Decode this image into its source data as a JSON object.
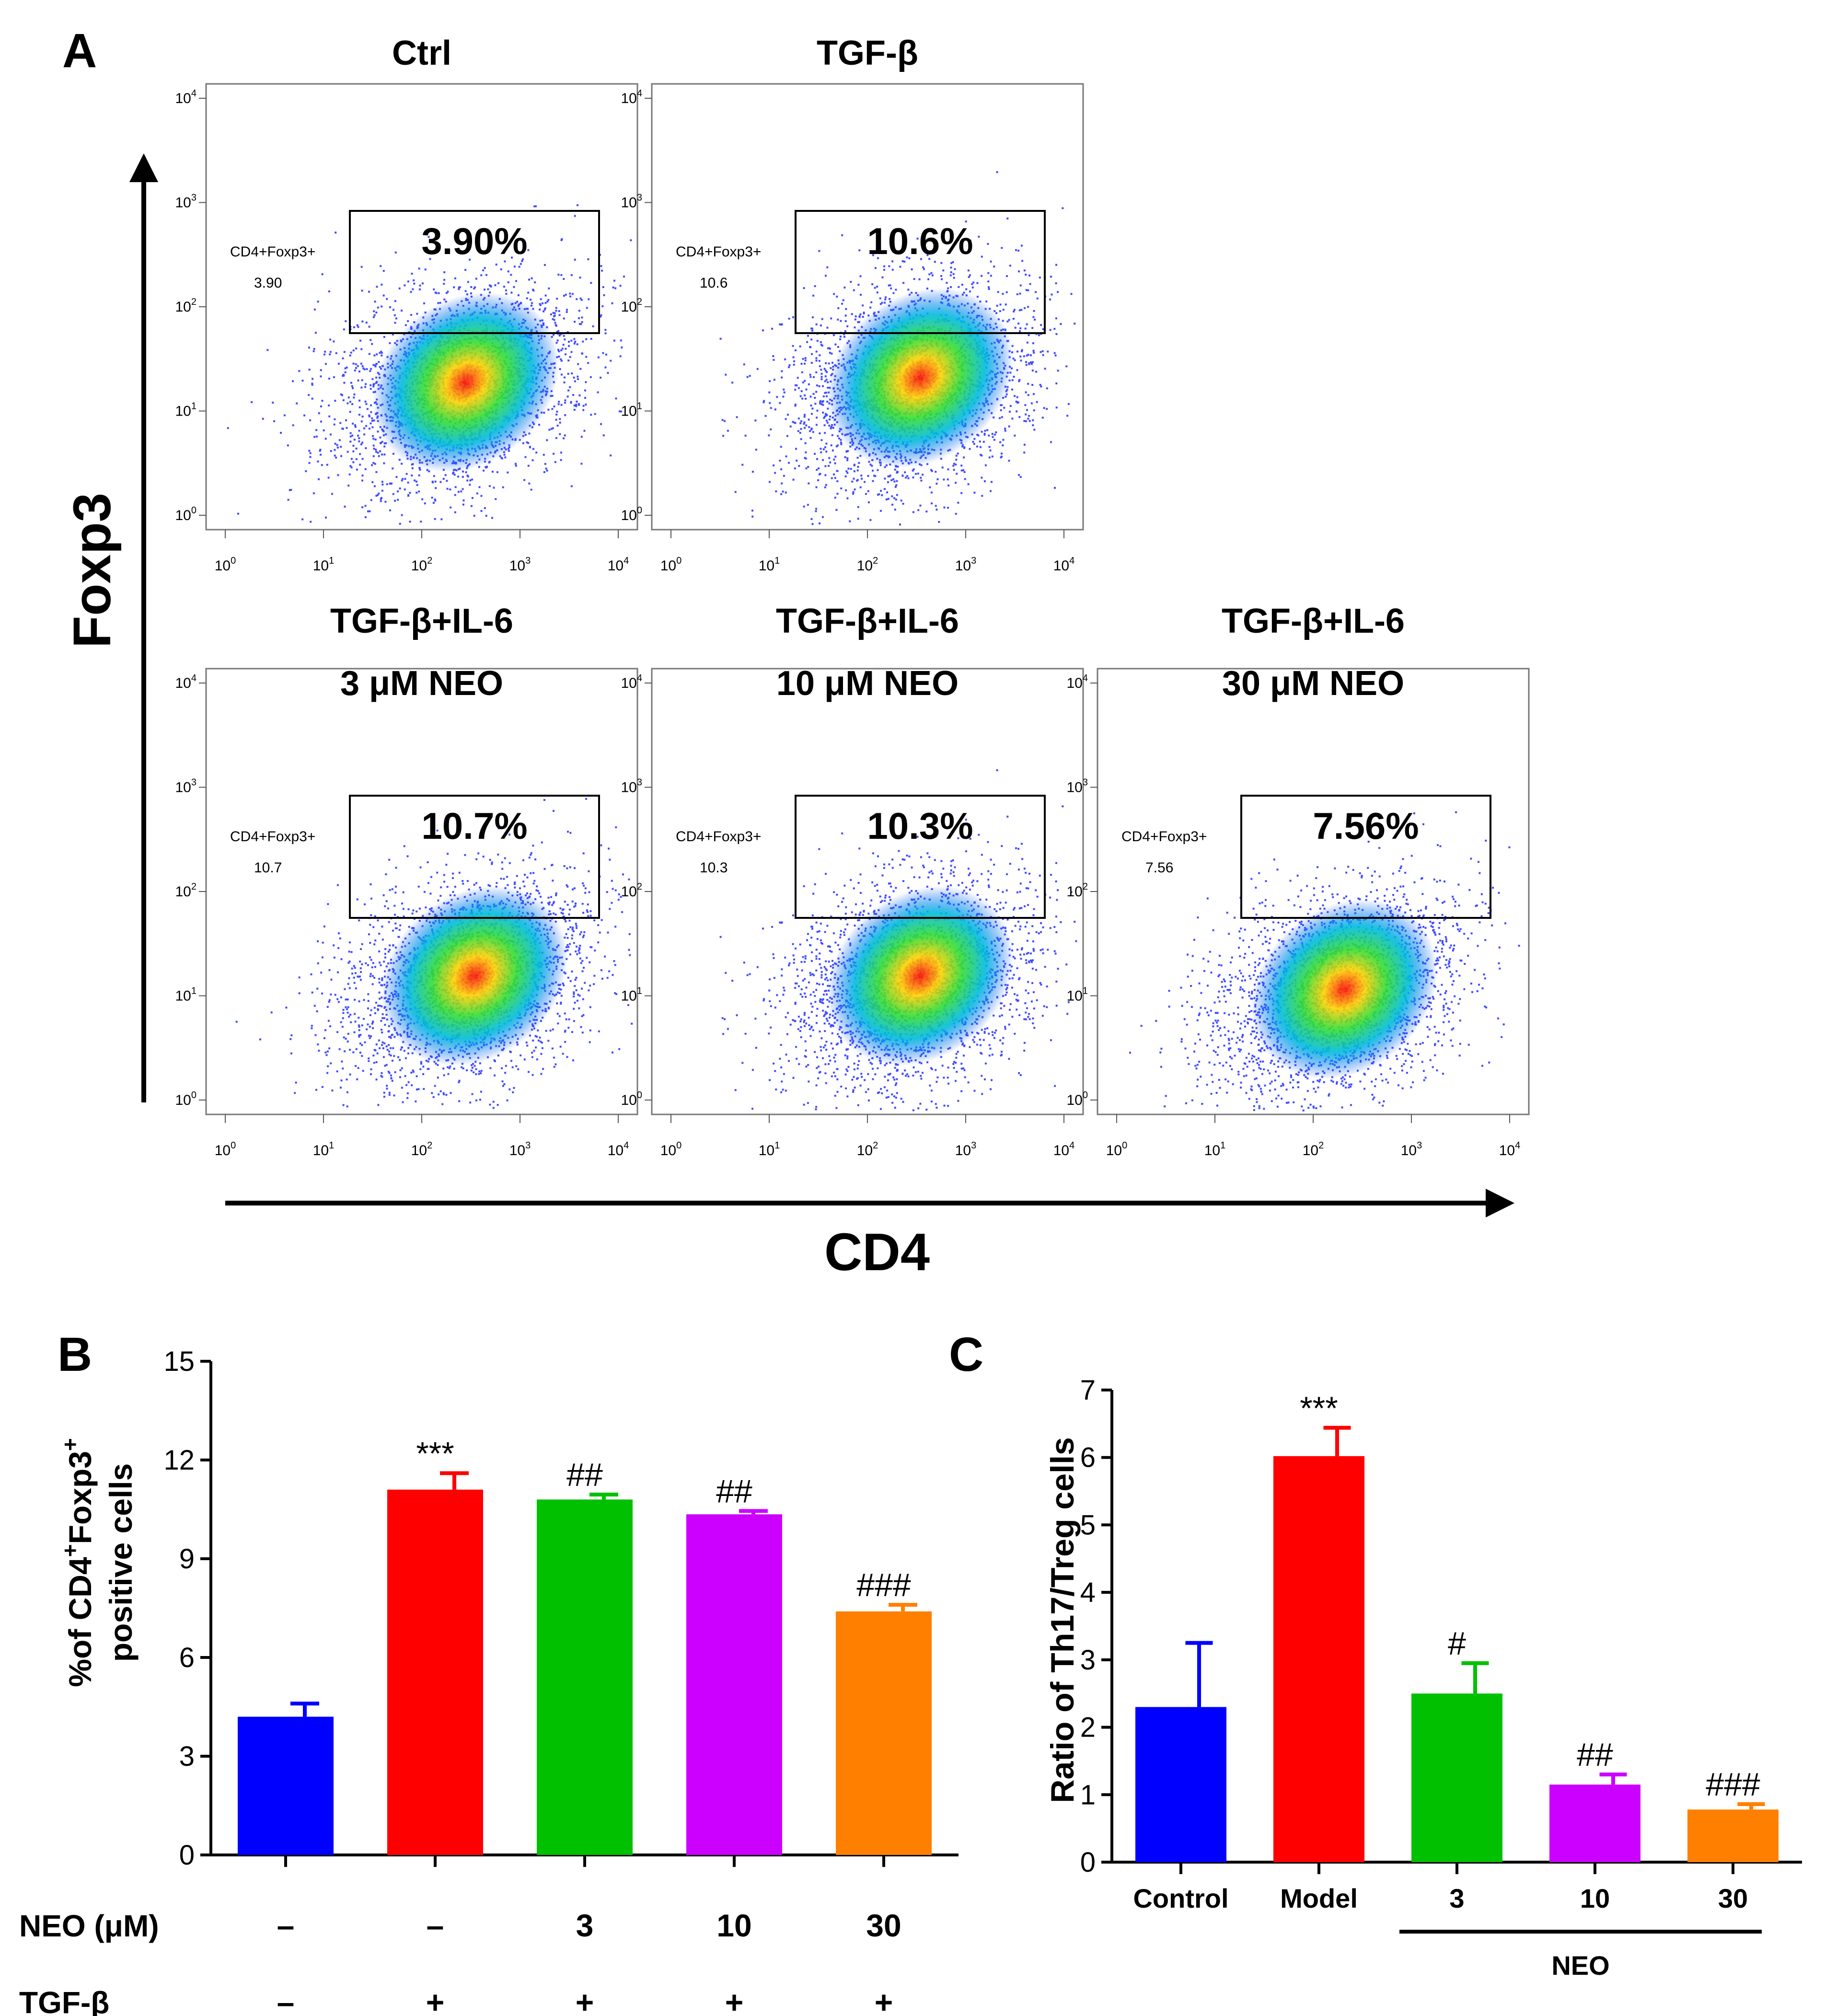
{
  "figure": {
    "panel_letters": [
      "A",
      "B",
      "C"
    ]
  },
  "panel_a": {
    "x_axis_label": "CD4",
    "y_axis_label": "Foxp3",
    "decade_tick_labels": [
      "10",
      "10",
      "10",
      "10",
      "10"
    ],
    "decade_tick_exponents": [
      "0",
      "1",
      "2",
      "3",
      "4"
    ],
    "gate_name": "CD4+Foxp3+",
    "plots": [
      {
        "title_line1": "Ctrl",
        "title_line2": "",
        "gate_value": "3.90",
        "gate_percent": "3.90%"
      },
      {
        "title_line1": "TGF-β",
        "title_line2": "",
        "gate_value": "10.6",
        "gate_percent": "10.6%"
      },
      {
        "title_line1": "TGF-β+IL-6",
        "title_line2": "3 μM NEO",
        "gate_value": "10.7",
        "gate_percent": "10.7%"
      },
      {
        "title_line1": "TGF-β+IL-6",
        "title_line2": "10 μM NEO",
        "gate_value": "10.3",
        "gate_percent": "10.3%"
      },
      {
        "title_line1": "TGF-β+IL-6",
        "title_line2": "30 μM NEO",
        "gate_value": "7.56",
        "gate_percent": "7.56%"
      }
    ]
  },
  "chart_data": [
    {
      "type": "bar",
      "panel": "B",
      "ylabel_line1_pre": "%of CD4",
      "ylabel_sup1": "+",
      "ylabel_mid": "Foxp3",
      "ylabel_sup2": "+",
      "ylabel_line2": "positive cells",
      "ylim": [
        0,
        15
      ],
      "yticks": [
        "0",
        "3",
        "6",
        "9",
        "12",
        "15"
      ],
      "values": [
        4.2,
        11.1,
        10.8,
        10.35,
        7.4
      ],
      "errors": [
        0.4,
        0.5,
        0.15,
        0.1,
        0.2
      ],
      "significance": [
        "",
        "***",
        "##",
        "##",
        "###"
      ],
      "colors": [
        "#0000ff",
        "#ff0000",
        "#00c000",
        "#cc00ff",
        "#ff8000"
      ],
      "condition_rows": [
        {
          "label": "NEO (μM)",
          "cells": [
            "–",
            "–",
            "3",
            "10",
            "30"
          ]
        },
        {
          "label": "TGF-β",
          "cells": [
            "–",
            "+",
            "+",
            "+",
            "+"
          ]
        }
      ]
    },
    {
      "type": "bar",
      "panel": "C",
      "ylabel": "Ratio of Th17/Treg cells",
      "ylim": [
        0,
        7
      ],
      "yticks": [
        "0",
        "1",
        "2",
        "3",
        "4",
        "5",
        "6",
        "7"
      ],
      "categories": [
        "Control",
        "Model",
        "3",
        "10",
        "30"
      ],
      "values": [
        2.3,
        6.02,
        2.5,
        1.15,
        0.78
      ],
      "errors": [
        0.95,
        0.42,
        0.45,
        0.15,
        0.08
      ],
      "significance": [
        "",
        "***",
        "#",
        "##",
        "###"
      ],
      "colors": [
        "#0000ff",
        "#ff0000",
        "#00c000",
        "#cc00ff",
        "#ff8000"
      ],
      "group_label": "NEO"
    }
  ]
}
